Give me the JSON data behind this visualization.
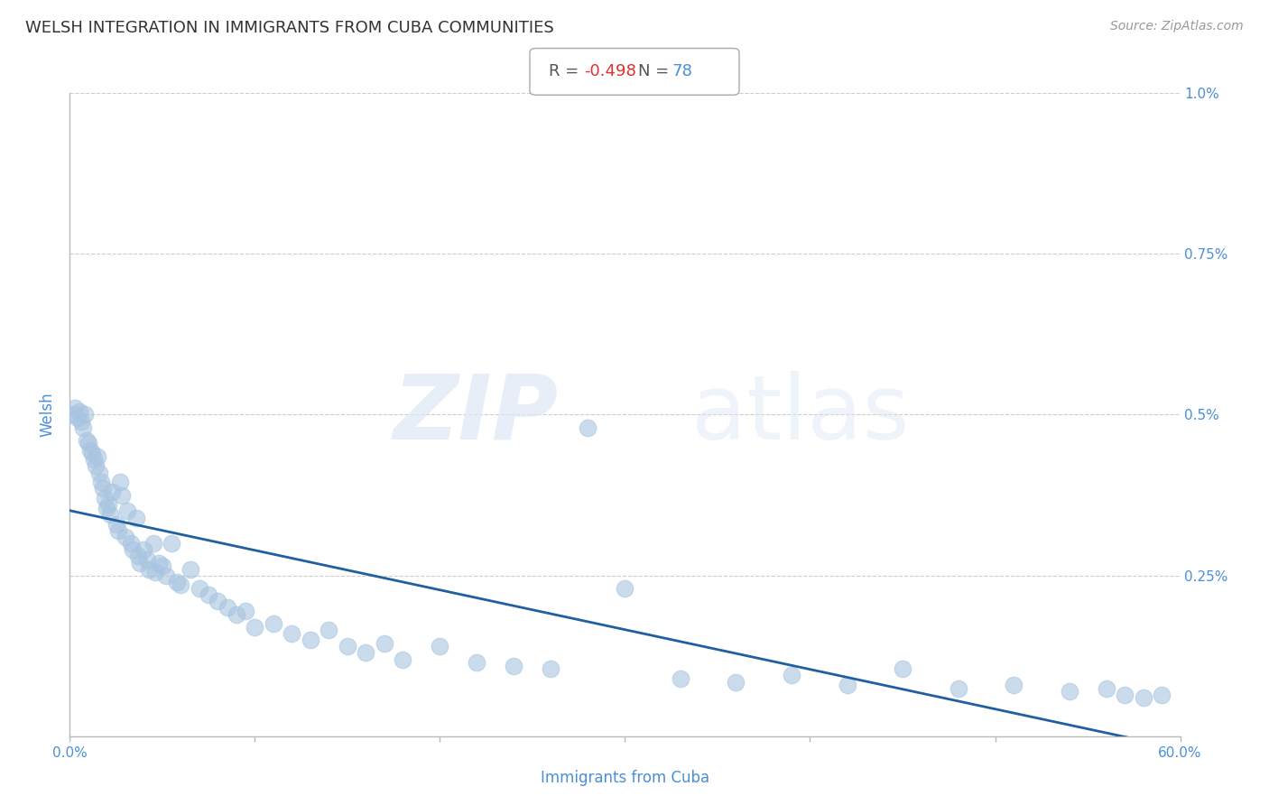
{
  "title": "WELSH INTEGRATION IN IMMIGRANTS FROM CUBA COMMUNITIES",
  "source": "Source: ZipAtlas.com",
  "xlabel": "Immigrants from Cuba",
  "ylabel": "Welsh",
  "R": -0.498,
  "N": 78,
  "xlim": [
    0.0,
    0.6
  ],
  "ylim": [
    0.0,
    0.01
  ],
  "xticks": [
    0.0,
    0.1,
    0.2,
    0.3,
    0.4,
    0.5,
    0.6
  ],
  "xticklabels": [
    "0.0%",
    "",
    "",
    "",
    "",
    "",
    "60.0%"
  ],
  "yticks": [
    0.0,
    0.0025,
    0.005,
    0.0075,
    0.01
  ],
  "yticklabels_right": [
    "",
    "0.25%",
    "0.5%",
    "0.75%",
    "1.0%"
  ],
  "scatter_color": "#a8c4e0",
  "scatter_alpha": 0.6,
  "scatter_size": 180,
  "regression_color": "#2060a0",
  "watermark_zip": "ZIP",
  "watermark_atlas": "atlas",
  "background_color": "#ffffff",
  "grid_color": "#cccccc",
  "title_color": "#333333",
  "axis_label_color": "#4a90d9",
  "annotation_R_label_color": "#555555",
  "annotation_R_color": "#e03030",
  "annotation_N_color": "#4a90d9",
  "points_x": [
    0.002,
    0.003,
    0.004,
    0.005,
    0.006,
    0.007,
    0.008,
    0.009,
    0.01,
    0.011,
    0.012,
    0.013,
    0.014,
    0.015,
    0.016,
    0.017,
    0.018,
    0.019,
    0.02,
    0.021,
    0.022,
    0.023,
    0.025,
    0.026,
    0.027,
    0.028,
    0.03,
    0.031,
    0.033,
    0.034,
    0.036,
    0.037,
    0.038,
    0.04,
    0.042,
    0.043,
    0.045,
    0.046,
    0.048,
    0.05,
    0.052,
    0.055,
    0.058,
    0.06,
    0.065,
    0.07,
    0.075,
    0.08,
    0.085,
    0.09,
    0.095,
    0.1,
    0.11,
    0.12,
    0.13,
    0.14,
    0.15,
    0.16,
    0.17,
    0.18,
    0.2,
    0.22,
    0.24,
    0.26,
    0.28,
    0.3,
    0.33,
    0.36,
    0.39,
    0.42,
    0.45,
    0.48,
    0.51,
    0.54,
    0.56,
    0.57,
    0.58,
    0.59
  ],
  "points_y": [
    0.005,
    0.0051,
    0.00495,
    0.00505,
    0.0049,
    0.0048,
    0.005,
    0.0046,
    0.00455,
    0.00445,
    0.0044,
    0.0043,
    0.0042,
    0.00435,
    0.0041,
    0.00395,
    0.00385,
    0.0037,
    0.00355,
    0.0036,
    0.00345,
    0.0038,
    0.0033,
    0.0032,
    0.00395,
    0.00375,
    0.0031,
    0.0035,
    0.003,
    0.0029,
    0.0034,
    0.0028,
    0.0027,
    0.0029,
    0.00275,
    0.0026,
    0.003,
    0.00255,
    0.0027,
    0.00265,
    0.0025,
    0.003,
    0.0024,
    0.00235,
    0.0026,
    0.0023,
    0.0022,
    0.0021,
    0.002,
    0.0019,
    0.00195,
    0.0017,
    0.00175,
    0.0016,
    0.0015,
    0.00165,
    0.0014,
    0.0013,
    0.00145,
    0.0012,
    0.0014,
    0.00115,
    0.0011,
    0.00105,
    0.0048,
    0.0023,
    0.0009,
    0.00085,
    0.00095,
    0.0008,
    0.00105,
    0.00075,
    0.0008,
    0.0007,
    0.00075,
    0.00065,
    0.0006,
    0.00065
  ]
}
